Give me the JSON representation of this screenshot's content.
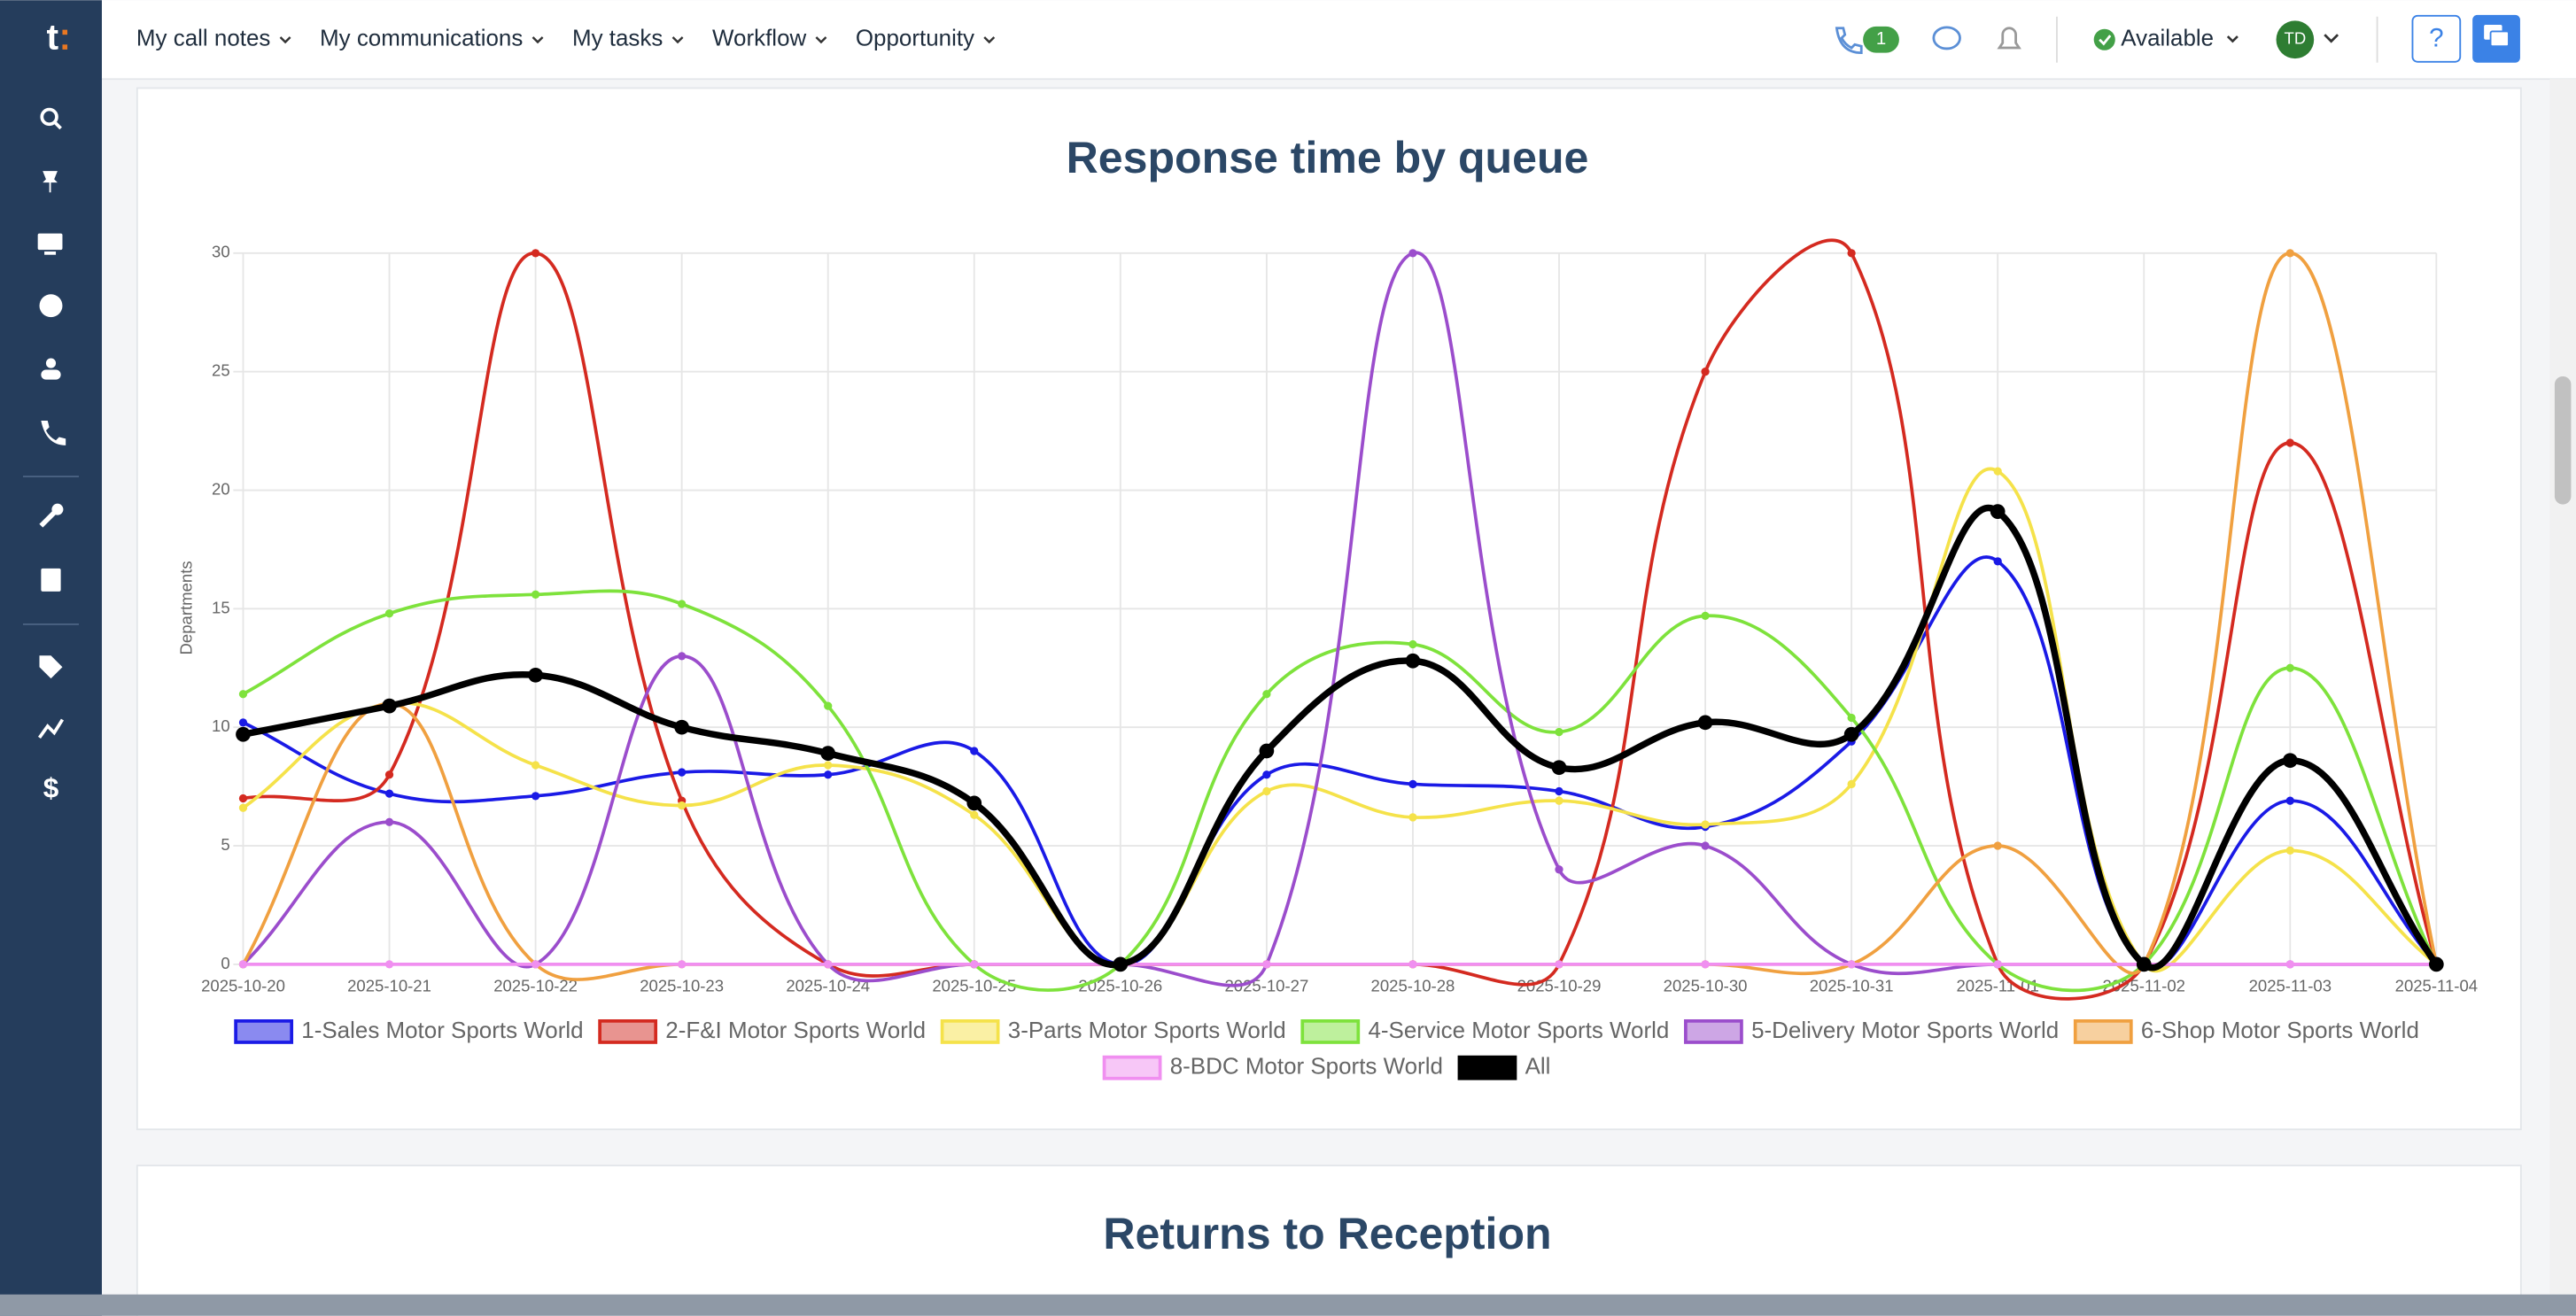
{
  "nav": {
    "items": [
      "My call notes",
      "My communications",
      "My tasks",
      "Workflow",
      "Opportunity"
    ],
    "badge": "1",
    "status": "Available",
    "avatar": "TD",
    "help": "?"
  },
  "chart_data": {
    "type": "line",
    "title": "Response time by queue",
    "y_label": "Departments",
    "categories": [
      "2025-10-20",
      "2025-10-21",
      "2025-10-22",
      "2025-10-23",
      "2025-10-24",
      "2025-10-25",
      "2025-10-26",
      "2025-10-27",
      "2025-10-28",
      "2025-10-29",
      "2025-10-30",
      "2025-10-31",
      "2025-11-01",
      "2025-11-02",
      "2025-11-03",
      "2025-11-04"
    ],
    "ylim": [
      0,
      30
    ],
    "yticks": [
      0,
      5,
      10,
      15,
      20,
      25,
      30
    ],
    "grid": true,
    "legend": "bottom",
    "series": [
      {
        "name": "1-Sales Motor Sports World",
        "color": "#1a1ae6",
        "fill": "#8a8af0",
        "values": [
          10.2,
          7.2,
          7.1,
          8.1,
          8.0,
          9.0,
          0,
          8.0,
          7.6,
          7.3,
          5.8,
          9.4,
          17.0,
          0,
          6.9,
          0
        ]
      },
      {
        "name": "2-F&I Motor Sports World",
        "color": "#d42a20",
        "fill": "#e89490",
        "values": [
          7.0,
          8.0,
          30,
          6.9,
          0,
          0,
          0,
          0,
          0,
          0,
          25,
          30,
          0,
          0,
          22,
          0
        ]
      },
      {
        "name": "3-Parts Motor Sports World",
        "color": "#f5e24a",
        "fill": "#faf0a4",
        "values": [
          6.6,
          11.0,
          8.4,
          6.7,
          8.4,
          6.3,
          0,
          7.3,
          6.2,
          6.9,
          5.9,
          7.6,
          20.8,
          0,
          4.8,
          0
        ]
      },
      {
        "name": "4-Service Motor Sports World",
        "color": "#7ee23c",
        "fill": "#bef09d",
        "values": [
          11.4,
          14.8,
          15.6,
          15.2,
          10.9,
          0,
          0,
          11.4,
          13.5,
          9.8,
          14.7,
          10.4,
          0,
          0,
          12.5,
          0
        ]
      },
      {
        "name": "5-Delivery Motor Sports World",
        "color": "#9b4dcc",
        "fill": "#cda6e5",
        "values": [
          0,
          6.0,
          0,
          13.0,
          0,
          0,
          0,
          0,
          30,
          4.0,
          5.0,
          0,
          0,
          0,
          0,
          0
        ]
      },
      {
        "name": "6-Shop Motor Sports World",
        "color": "#f0a040",
        "fill": "#f7d09f",
        "values": [
          0,
          11.0,
          0,
          0,
          0,
          0,
          0,
          0,
          0,
          0,
          0,
          0,
          5.0,
          0,
          30,
          0
        ]
      },
      {
        "name": "8-BDC Motor Sports World",
        "color": "#f08ff0",
        "fill": "#f7c7f7",
        "values": [
          0,
          0,
          0,
          0,
          0,
          0,
          0,
          0,
          0,
          0,
          0,
          0,
          0,
          0,
          0,
          0
        ]
      },
      {
        "name": "All",
        "color": "#000000",
        "fill": "#000000",
        "values": [
          9.7,
          10.9,
          12.2,
          10.0,
          8.9,
          6.8,
          0,
          9.0,
          12.8,
          8.3,
          10.2,
          9.7,
          19.1,
          0,
          8.6,
          0
        ]
      }
    ]
  },
  "next_section": {
    "title": "Returns to Reception"
  }
}
